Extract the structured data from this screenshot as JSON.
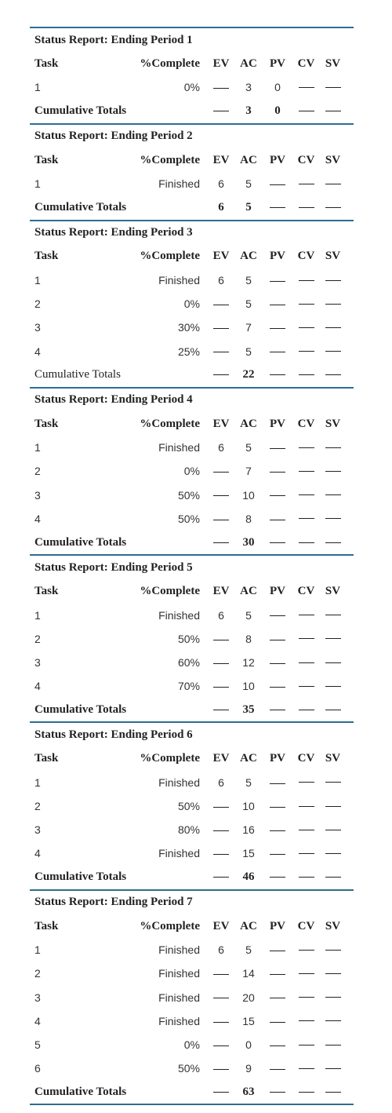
{
  "headers": {
    "task": "Task",
    "pct": "%Complete",
    "ev": "EV",
    "ac": "AC",
    "pv": "PV",
    "cv": "CV",
    "sv": "SV"
  },
  "dash": "—",
  "sections": [
    {
      "title": "Status Report: Ending Period 1",
      "rows": [
        {
          "task": "1",
          "pct": "0%",
          "ev": "—",
          "ac": "3",
          "pv": "0",
          "cv": "—",
          "sv": "—"
        }
      ],
      "total": {
        "label": "Cumulative Totals",
        "ev": "—",
        "ac": "3",
        "pv": "0",
        "cv": "—",
        "sv": "—",
        "bold_label": true
      }
    },
    {
      "title": "Status Report: Ending Period 2",
      "rows": [
        {
          "task": "1",
          "pct": "Finished",
          "ev": "6",
          "ac": "5",
          "pv": "—",
          "cv": "—",
          "sv": "—"
        }
      ],
      "total": {
        "label": "Cumulative Totals",
        "ev": "6",
        "ac": "5",
        "pv": "—",
        "cv": "—",
        "sv": "—",
        "bold_label": true
      }
    },
    {
      "title": "Status Report: Ending Period 3",
      "rows": [
        {
          "task": "1",
          "pct": "Finished",
          "ev": "6",
          "ac": "5",
          "pv": "—",
          "cv": "—",
          "sv": "—"
        },
        {
          "task": "2",
          "pct": "0%",
          "ev": "—",
          "ac": "5",
          "pv": "—",
          "cv": "—",
          "sv": "—"
        },
        {
          "task": "3",
          "pct": "30%",
          "ev": "—",
          "ac": "7",
          "pv": "—",
          "cv": "—",
          "sv": "—"
        },
        {
          "task": "4",
          "pct": "25%",
          "ev": "—",
          "ac": "5",
          "pv": "—",
          "cv": "—",
          "sv": "—"
        }
      ],
      "total": {
        "label": "Cumulative Totals",
        "ev": "—",
        "ac": "22",
        "pv": "—",
        "cv": "—",
        "sv": "—",
        "bold_label": false
      }
    },
    {
      "title": "Status Report: Ending Period 4",
      "rows": [
        {
          "task": "1",
          "pct": "Finished",
          "ev": "6",
          "ac": "5",
          "pv": "—",
          "cv": "—",
          "sv": "—"
        },
        {
          "task": "2",
          "pct": "0%",
          "ev": "—",
          "ac": "7",
          "pv": "—",
          "cv": "—",
          "sv": "—"
        },
        {
          "task": "3",
          "pct": "50%",
          "ev": "—",
          "ac": "10",
          "pv": "—",
          "cv": "—",
          "sv": "—"
        },
        {
          "task": "4",
          "pct": "50%",
          "ev": "—",
          "ac": "8",
          "pv": "—",
          "cv": "—",
          "sv": "—"
        }
      ],
      "total": {
        "label": "Cumulative Totals",
        "ev": "—",
        "ac": "30",
        "pv": "—",
        "cv": "—",
        "sv": "—",
        "bold_label": true
      }
    },
    {
      "title": "Status Report: Ending Period 5",
      "rows": [
        {
          "task": "1",
          "pct": "Finished",
          "ev": "6",
          "ac": "5",
          "pv": "—",
          "cv": "—",
          "sv": "—"
        },
        {
          "task": "2",
          "pct": "50%",
          "ev": "—",
          "ac": "8",
          "pv": "—",
          "cv": "—",
          "sv": "—"
        },
        {
          "task": "3",
          "pct": "60%",
          "ev": "—",
          "ac": "12",
          "pv": "—",
          "cv": "—",
          "sv": "—"
        },
        {
          "task": "4",
          "pct": "70%",
          "ev": "—",
          "ac": "10",
          "pv": "—",
          "cv": "—",
          "sv": "—"
        }
      ],
      "total": {
        "label": "Cumulative Totals",
        "ev": "—",
        "ac": "35",
        "pv": "—",
        "cv": "—",
        "sv": "—",
        "bold_label": true
      }
    },
    {
      "title": "Status Report: Ending Period 6",
      "rows": [
        {
          "task": "1",
          "pct": "Finished",
          "ev": "6",
          "ac": "5",
          "pv": "—",
          "cv": "—",
          "sv": "—"
        },
        {
          "task": "2",
          "pct": "50%",
          "ev": "—",
          "ac": "10",
          "pv": "—",
          "cv": "—",
          "sv": "—"
        },
        {
          "task": "3",
          "pct": "80%",
          "ev": "—",
          "ac": "16",
          "pv": "—",
          "cv": "—",
          "sv": "—"
        },
        {
          "task": "4",
          "pct": "Finished",
          "ev": "—",
          "ac": "15",
          "pv": "—",
          "cv": "—",
          "sv": "—"
        }
      ],
      "total": {
        "label": "Cumulative Totals",
        "ev": "—",
        "ac": "46",
        "pv": "—",
        "cv": "—",
        "sv": "—",
        "bold_label": true
      }
    },
    {
      "title": "Status Report: Ending Period 7",
      "rows": [
        {
          "task": "1",
          "pct": "Finished",
          "ev": "6",
          "ac": "5",
          "pv": "—",
          "cv": "—",
          "sv": "—"
        },
        {
          "task": "2",
          "pct": "Finished",
          "ev": "—",
          "ac": "14",
          "pv": "—",
          "cv": "—",
          "sv": "—"
        },
        {
          "task": "3",
          "pct": "Finished",
          "ev": "—",
          "ac": "20",
          "pv": "—",
          "cv": "—",
          "sv": "—"
        },
        {
          "task": "4",
          "pct": "Finished",
          "ev": "—",
          "ac": "15",
          "pv": "—",
          "cv": "—",
          "sv": "—"
        },
        {
          "task": "5",
          "pct": "0%",
          "ev": "—",
          "ac": "0",
          "pv": "—",
          "cv": "—",
          "sv": "—"
        },
        {
          "task": "6",
          "pct": "50%",
          "ev": "—",
          "ac": "9",
          "pv": "—",
          "cv": "—",
          "sv": "—"
        }
      ],
      "total": {
        "label": "Cumulative Totals",
        "ev": "—",
        "ac": "63",
        "pv": "—",
        "cv": "—",
        "sv": "—",
        "bold_label": true
      }
    }
  ]
}
